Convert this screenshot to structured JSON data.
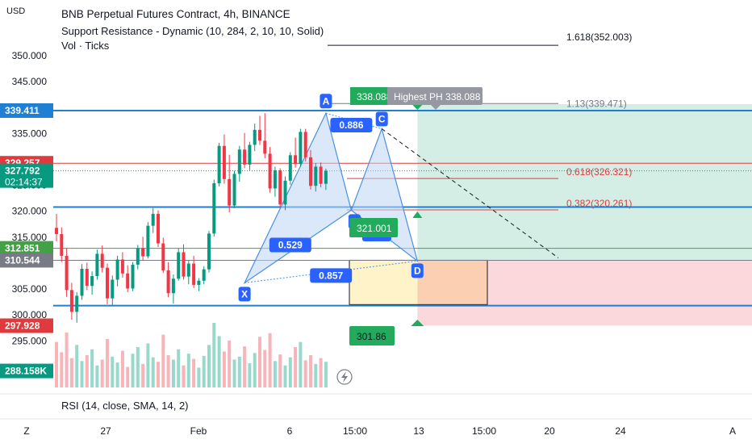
{
  "header": {
    "currency": "USD",
    "title": "BNB Perpetual Futures Contract, 4h, BINANCE",
    "indicator1": "Support Resistance - Dynamic (10, 284, 2, 10, 10, Solid)",
    "indicator2": "Vol · Ticks",
    "rsi": "RSI (14, close, SMA, 14, 2)",
    "zoom_left": "Z",
    "zoom_right": "A"
  },
  "chart_data": {
    "type": "candlestick",
    "ylim": [
      291,
      357
    ],
    "price_ticks": [
      350,
      345,
      340,
      335,
      325,
      320,
      315,
      305,
      300,
      295
    ],
    "price_tick_labels": [
      "350.000",
      "345.000",
      "340.000",
      "335.000",
      "325.000",
      "320.000",
      "315.000",
      "305.000",
      "300.000",
      "295.000"
    ],
    "time_labels": [
      {
        "label": "27",
        "t": 10
      },
      {
        "label": "Feb",
        "t": 32
      },
      {
        "label": "6",
        "t": 54
      },
      {
        "label": "15:00",
        "t": 68
      },
      {
        "label": "13",
        "t": 84
      },
      {
        "label": "15:00",
        "t": 100
      },
      {
        "label": "20",
        "t": 116
      },
      {
        "label": "24",
        "t": 134
      }
    ],
    "price_badges": [
      {
        "label": "339.411",
        "price": 339.411,
        "color": "#1e7fd3"
      },
      {
        "label": "329.257",
        "price": 329.257,
        "color": "#e03a3e"
      },
      {
        "label": "327.792",
        "sub": "02:14:37",
        "price": 327.792,
        "color": "#089981"
      },
      {
        "label": "312.851",
        "price": 312.851,
        "color": "#43a047"
      },
      {
        "label": "310.544",
        "price": 310.544,
        "color": "#787b86"
      },
      {
        "label": "297.928",
        "price": 297.928,
        "color": "#e03a3e"
      },
      {
        "label": "288.158K",
        "price": 289.2,
        "color": "#089981"
      }
    ],
    "harmonic": {
      "points": [
        {
          "label": "X",
          "t": 37,
          "price": 306.2
        },
        {
          "label": "A",
          "t": 53,
          "price": 338.9
        },
        {
          "label": "B",
          "t": 58,
          "price": 320.2
        },
        {
          "label": "C",
          "t": 64,
          "price": 335.9
        },
        {
          "label": "D",
          "t": 71,
          "price": 310.4
        }
      ],
      "ratios": [
        {
          "label": "0.886",
          "t": 58,
          "price": 336.6
        },
        {
          "label": "0.529",
          "t": 46,
          "price": 313.5
        },
        {
          "label": "1.7",
          "t": 63,
          "price": 315.6
        },
        {
          "label": "0.857",
          "t": 54,
          "price": 307.6
        }
      ]
    },
    "fib_levels": [
      {
        "label": "1.618(352.003)",
        "price": 352.003
      },
      {
        "label": "1.13(339.471)",
        "price": 339.471
      },
      {
        "label": "0.618(326.321)",
        "price": 326.321
      },
      {
        "label": "0.382(320.261)",
        "price": 320.261
      }
    ],
    "annotations": {
      "highest_value": "338.088",
      "highest_label": "Highest PH 338.088",
      "level_321": "321.001",
      "level_301": "301.86"
    },
    "candles": [
      [
        316.8,
        319.5,
        314.2,
        315.6
      ],
      [
        315.6,
        316.9,
        310.2,
        311.4
      ],
      [
        311.4,
        312.8,
        303.5,
        304.8
      ],
      [
        304.8,
        306.2,
        299.1,
        300.6
      ],
      [
        300.6,
        304.4,
        298.5,
        303.7
      ],
      [
        303.7,
        309.8,
        302.9,
        308.9
      ],
      [
        308.9,
        310.1,
        304.8,
        305.6
      ],
      [
        305.6,
        308.4,
        303.9,
        307.5
      ],
      [
        307.5,
        312.6,
        306.8,
        311.8
      ],
      [
        311.8,
        313.4,
        308.2,
        309.1
      ],
      [
        309.1,
        309.9,
        302.1,
        303.2
      ],
      [
        303.2,
        307.6,
        301.9,
        306.8
      ],
      [
        306.8,
        311.4,
        305.5,
        310.7
      ],
      [
        310.7,
        312.1,
        307.2,
        308.0
      ],
      [
        308.0,
        309.6,
        304.4,
        305.1
      ],
      [
        305.1,
        310.2,
        304.6,
        309.7
      ],
      [
        309.7,
        313.5,
        308.8,
        312.9
      ],
      [
        312.9,
        315.1,
        310.5,
        311.3
      ],
      [
        311.3,
        317.9,
        310.9,
        317.2
      ],
      [
        317.2,
        320.6,
        315.8,
        319.5
      ],
      [
        319.5,
        320.2,
        313.1,
        313.8
      ],
      [
        313.8,
        314.9,
        308.1,
        308.6
      ],
      [
        308.6,
        310.2,
        303.4,
        304.2
      ],
      [
        304.2,
        307.8,
        302.2,
        307.0
      ],
      [
        307.0,
        312.8,
        306.6,
        312.1
      ],
      [
        312.1,
        313.6,
        306.8,
        307.4
      ],
      [
        307.4,
        310.5,
        305.9,
        309.9
      ],
      [
        309.9,
        311.4,
        305.2,
        305.8
      ],
      [
        305.8,
        307.1,
        304.6,
        306.6
      ],
      [
        306.6,
        309.4,
        305.9,
        308.8
      ],
      [
        308.8,
        316.2,
        308.2,
        315.7
      ],
      [
        315.7,
        326.1,
        315.1,
        325.4
      ],
      [
        325.4,
        333.2,
        324.8,
        332.6
      ],
      [
        332.6,
        334.8,
        325.3,
        326.2
      ],
      [
        326.2,
        330.9,
        319.8,
        321.1
      ],
      [
        321.1,
        327.8,
        320.6,
        327.2
      ],
      [
        327.2,
        332.6,
        325.7,
        331.9
      ],
      [
        331.9,
        335.1,
        328.3,
        329.0
      ],
      [
        329.0,
        333.4,
        327.9,
        332.8
      ],
      [
        332.8,
        336.9,
        331.6,
        335.7
      ],
      [
        335.7,
        338.4,
        332.8,
        333.6
      ],
      [
        333.6,
        338.9,
        330.2,
        331.1
      ],
      [
        331.1,
        332.4,
        323.6,
        324.4
      ],
      [
        324.4,
        328.6,
        322.8,
        327.9
      ],
      [
        327.9,
        328.3,
        320.6,
        321.3
      ],
      [
        321.3,
        326.7,
        320.2,
        325.9
      ],
      [
        325.9,
        331.4,
        325.1,
        330.8
      ],
      [
        330.8,
        334.2,
        328.4,
        329.1
      ],
      [
        329.1,
        335.9,
        328.6,
        335.3
      ],
      [
        335.3,
        335.9,
        329.6,
        330.4
      ],
      [
        330.4,
        331.8,
        324.2,
        324.9
      ],
      [
        324.9,
        329.3,
        323.8,
        328.6
      ],
      [
        328.6,
        329.4,
        324.6,
        325.3
      ],
      [
        325.3,
        328.2,
        324.1,
        327.8
      ]
    ],
    "volumes": [
      62,
      48,
      75,
      40,
      58,
      36,
      44,
      52,
      30,
      38,
      66,
      42,
      34,
      50,
      28,
      46,
      55,
      32,
      60,
      41,
      35,
      72,
      44,
      38,
      52,
      30,
      46,
      39,
      27,
      43,
      58,
      88,
      70,
      49,
      64,
      38,
      42,
      56,
      33,
      47,
      69,
      51,
      74,
      36,
      45,
      30,
      41,
      55,
      62,
      37,
      44,
      32,
      40,
      35
    ]
  }
}
